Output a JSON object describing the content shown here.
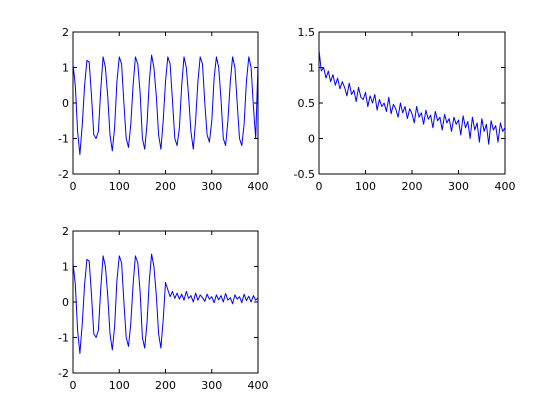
{
  "chart_data": [
    {
      "type": "line",
      "xlim": [
        0,
        400
      ],
      "ylim": [
        -2,
        2
      ],
      "xticks": [
        0,
        100,
        200,
        300,
        400
      ],
      "yticks": [
        -2,
        -1,
        0,
        1,
        2
      ],
      "x_tick_labels": [
        "0",
        "100",
        "200",
        "300",
        "400"
      ],
      "y_tick_labels": [
        "-2",
        "-1",
        "0",
        "1",
        "2"
      ],
      "grid": false,
      "series": [
        {
          "color": "#0000ff",
          "x": [
            0,
            5,
            10,
            15,
            20,
            25,
            30,
            35,
            40,
            45,
            50,
            55,
            60,
            65,
            70,
            75,
            80,
            85,
            90,
            95,
            100,
            105,
            110,
            115,
            120,
            125,
            130,
            135,
            140,
            145,
            150,
            155,
            160,
            165,
            170,
            175,
            180,
            185,
            190,
            195,
            200,
            205,
            210,
            215,
            220,
            225,
            230,
            235,
            240,
            245,
            250,
            255,
            260,
            265,
            270,
            275,
            280,
            285,
            290,
            295,
            300,
            305,
            310,
            315,
            320,
            325,
            330,
            335,
            340,
            345,
            350,
            355,
            360,
            365,
            370,
            375,
            380,
            385,
            390,
            395,
            400
          ],
          "y": [
            1.1,
            0.5,
            -0.8,
            -1.45,
            -0.6,
            0.5,
            1.2,
            1.15,
            0.2,
            -0.9,
            -1.0,
            -0.8,
            0.4,
            1.3,
            1.0,
            0.2,
            -0.9,
            -1.35,
            -0.7,
            0.6,
            1.3,
            1.1,
            0.0,
            -1.0,
            -1.25,
            -0.6,
            0.5,
            1.3,
            1.1,
            0.3,
            -1.0,
            -1.3,
            -0.6,
            0.6,
            1.35,
            1.0,
            0.2,
            -0.9,
            -1.3,
            -0.5,
            0.6,
            1.3,
            1.1,
            0.1,
            -1.0,
            -1.2,
            -0.7,
            0.5,
            1.3,
            1.0,
            0.2,
            -0.8,
            -1.3,
            -0.5,
            0.6,
            1.3,
            1.1,
            0.0,
            -0.9,
            -1.1,
            -0.5,
            0.7,
            1.3,
            1.0,
            0.1,
            -1.0,
            -1.2,
            -0.5,
            0.6,
            1.3,
            1.0,
            0.0,
            -1.0,
            -1.2,
            -0.6,
            0.6,
            1.3,
            1.0,
            -0.1,
            -1.0,
            1.1
          ]
        }
      ]
    },
    {
      "type": "line",
      "xlim": [
        0,
        400
      ],
      "ylim": [
        -0.5,
        1.5
      ],
      "xticks": [
        0,
        100,
        200,
        300,
        400
      ],
      "yticks": [
        -0.5,
        0,
        0.5,
        1,
        1.5
      ],
      "x_tick_labels": [
        "0",
        "100",
        "200",
        "300",
        "400"
      ],
      "y_tick_labels": [
        "-0.5",
        "0",
        "0.5",
        "1",
        "1.5"
      ],
      "grid": false,
      "series": [
        {
          "color": "#0000ff",
          "x": [
            0,
            5,
            10,
            15,
            20,
            25,
            30,
            35,
            40,
            45,
            50,
            55,
            60,
            65,
            70,
            75,
            80,
            85,
            90,
            95,
            100,
            105,
            110,
            115,
            120,
            125,
            130,
            135,
            140,
            145,
            150,
            155,
            160,
            165,
            170,
            175,
            180,
            185,
            190,
            195,
            200,
            205,
            210,
            215,
            220,
            225,
            230,
            235,
            240,
            245,
            250,
            255,
            260,
            265,
            270,
            275,
            280,
            285,
            290,
            295,
            300,
            305,
            310,
            315,
            320,
            325,
            330,
            335,
            340,
            345,
            350,
            355,
            360,
            365,
            370,
            375,
            380,
            385,
            390,
            395,
            400
          ],
          "y": [
            1.25,
            0.95,
            1.0,
            0.85,
            0.95,
            0.8,
            0.9,
            0.75,
            0.85,
            0.7,
            0.8,
            0.72,
            0.6,
            0.78,
            0.62,
            0.68,
            0.52,
            0.72,
            0.58,
            0.55,
            0.65,
            0.45,
            0.6,
            0.5,
            0.62,
            0.4,
            0.55,
            0.45,
            0.5,
            0.38,
            0.58,
            0.35,
            0.48,
            0.42,
            0.3,
            0.5,
            0.36,
            0.45,
            0.28,
            0.42,
            0.35,
            0.22,
            0.45,
            0.3,
            0.36,
            0.2,
            0.4,
            0.27,
            0.33,
            0.15,
            0.38,
            0.25,
            0.3,
            0.12,
            0.34,
            0.22,
            0.28,
            0.1,
            0.3,
            0.2,
            0.26,
            0.05,
            0.32,
            0.15,
            0.24,
            0.0,
            0.3,
            0.12,
            0.22,
            -0.05,
            0.28,
            0.1,
            0.2,
            -0.08,
            0.25,
            0.12,
            0.18,
            -0.05,
            0.22,
            0.1,
            0.15
          ]
        }
      ]
    },
    {
      "type": "line",
      "xlim": [
        0,
        400
      ],
      "ylim": [
        -2,
        2
      ],
      "xticks": [
        0,
        100,
        200,
        300,
        400
      ],
      "yticks": [
        -2,
        -1,
        0,
        1,
        2
      ],
      "x_tick_labels": [
        "0",
        "100",
        "200",
        "300",
        "400"
      ],
      "y_tick_labels": [
        "-2",
        "-1",
        "0",
        "1",
        "2"
      ],
      "grid": false,
      "series": [
        {
          "color": "#0000ff",
          "x": [
            0,
            5,
            10,
            15,
            20,
            25,
            30,
            35,
            40,
            45,
            50,
            55,
            60,
            65,
            70,
            75,
            80,
            85,
            90,
            95,
            100,
            105,
            110,
            115,
            120,
            125,
            130,
            135,
            140,
            145,
            150,
            155,
            160,
            165,
            170,
            175,
            180,
            185,
            190,
            195,
            200,
            205,
            210,
            215,
            220,
            225,
            230,
            235,
            240,
            245,
            250,
            255,
            260,
            265,
            270,
            275,
            280,
            285,
            290,
            295,
            300,
            305,
            310,
            315,
            320,
            325,
            330,
            335,
            340,
            345,
            350,
            355,
            360,
            365,
            370,
            375,
            380,
            385,
            390,
            395,
            400
          ],
          "y": [
            1.1,
            0.5,
            -0.8,
            -1.45,
            -0.6,
            0.5,
            1.2,
            1.15,
            0.2,
            -0.9,
            -1.0,
            -0.8,
            0.4,
            1.3,
            1.0,
            0.2,
            -0.9,
            -1.35,
            -0.7,
            0.6,
            1.3,
            1.1,
            0.0,
            -1.0,
            -1.25,
            -0.6,
            0.5,
            1.3,
            1.1,
            0.3,
            -1.0,
            -1.3,
            -0.6,
            0.6,
            1.35,
            1.0,
            0.2,
            -0.9,
            -1.3,
            -0.5,
            0.55,
            0.35,
            0.15,
            0.3,
            0.1,
            0.25,
            0.08,
            0.22,
            0.05,
            0.3,
            0.1,
            0.18,
            0.0,
            0.25,
            0.05,
            0.2,
            0.12,
            0.02,
            0.22,
            0.08,
            0.15,
            -0.02,
            0.2,
            0.06,
            0.18,
            0.0,
            0.24,
            0.05,
            0.12,
            -0.05,
            0.2,
            0.08,
            0.15,
            -0.02,
            0.22,
            0.04,
            0.16,
            0.0,
            0.18,
            0.05,
            0.12
          ]
        }
      ]
    }
  ]
}
